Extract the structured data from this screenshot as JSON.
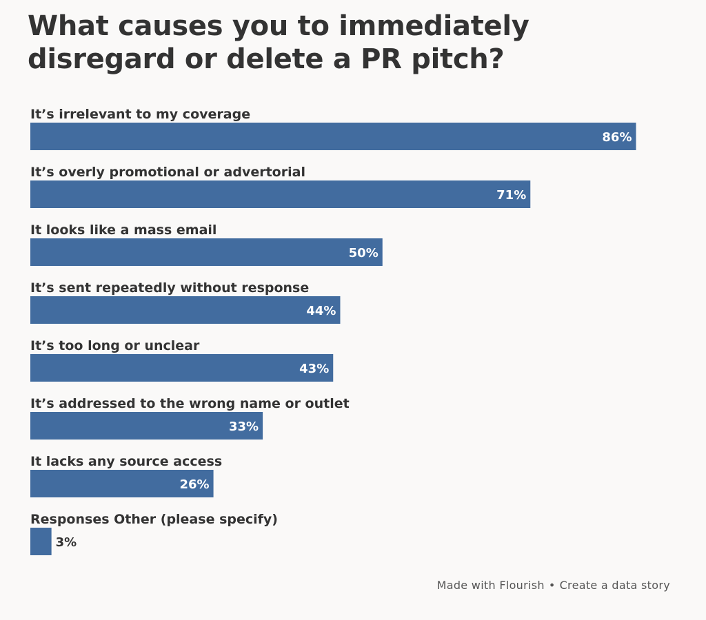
{
  "header": {
    "title": "What causes you to immediately disregard or delete a PR pitch?"
  },
  "colors": {
    "bar": "#426c9f",
    "label_inside": "#ffffff",
    "label_outside": "#333333"
  },
  "chart_data": {
    "type": "bar",
    "orientation": "horizontal",
    "title": "What causes you to immediately disregard or delete a PR pitch?",
    "categories": [
      "It’s irrelevant to my coverage",
      "It’s overly promotional or advertorial",
      "It looks like a mass email",
      "It’s sent repeatedly without response",
      "It’s too long or unclear",
      "It’s addressed to the wrong name or outlet",
      "It lacks any source access",
      "Responses Other (please specify)"
    ],
    "values": [
      86,
      71,
      50,
      44,
      43,
      33,
      26,
      3
    ],
    "value_labels": [
      "86%",
      "71%",
      "50%",
      "44%",
      "43%",
      "33%",
      "26%",
      "3%"
    ],
    "unit": "%",
    "xlim": [
      0,
      100
    ],
    "grid": false,
    "legend": "none"
  },
  "footer": {
    "made_with": "Made with Flourish",
    "separator": "•",
    "create": "Create a data story"
  }
}
